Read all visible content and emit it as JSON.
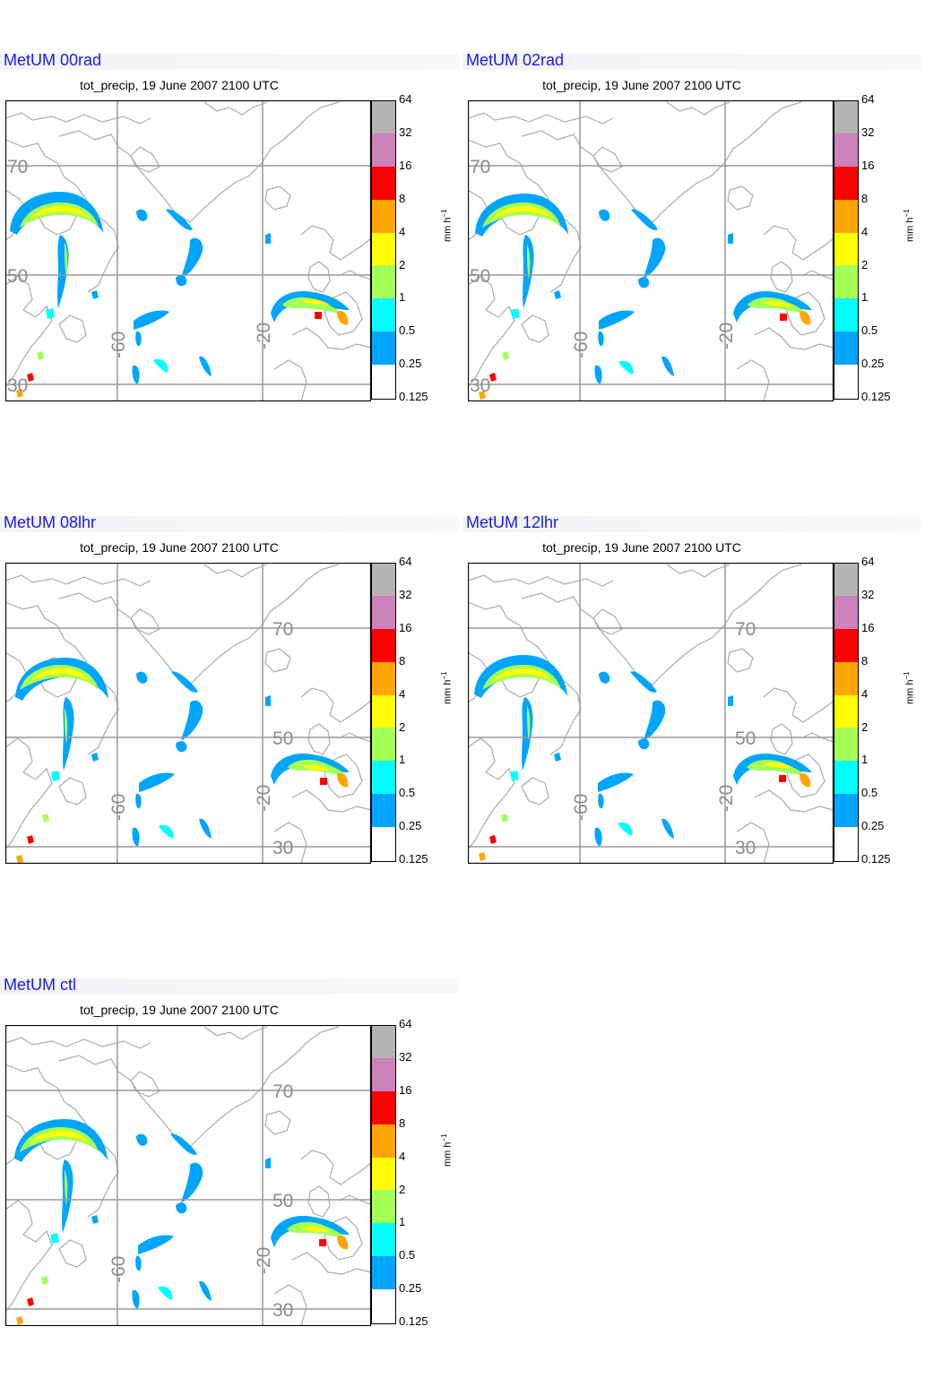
{
  "subtitle": "tot_precip, 19 June 2007 2100 UTC",
  "colorbar": {
    "unit_label": "mm h",
    "unit_exponent": "−1",
    "ticks": [
      "64",
      "32",
      "16",
      "8",
      "4",
      "2",
      "1",
      "0.5",
      "0.25",
      "0.125"
    ],
    "colors": [
      "#b4b4b4",
      "#cd82b9",
      "#ff0000",
      "#ffa500",
      "#ffff00",
      "#a5ff55",
      "#00ffff",
      "#00a5ff",
      "#ffffff"
    ]
  },
  "panels": [
    {
      "title": "MetUM 00rad",
      "labels": {
        "lat_high": "70",
        "lat_mid": "50",
        "lat_low": "30",
        "lon_west": "-60",
        "lon_east": "-20"
      },
      "label_style": "left"
    },
    {
      "title": "MetUM 02rad",
      "labels": {
        "lat_high": "70",
        "lat_mid": "50",
        "lat_low": "30",
        "lon_west": "-60",
        "lon_east": "-20"
      },
      "label_style": "left"
    },
    {
      "title": "MetUM 08lhr",
      "labels": {
        "lat_high": "70",
        "lat_mid": "50",
        "lat_low": "30",
        "lon_west": "-60",
        "lon_east": "-20"
      },
      "label_style": "center"
    },
    {
      "title": "MetUM 12lhr",
      "labels": {
        "lat_high": "70",
        "lat_mid": "50",
        "lat_low": "30",
        "lon_west": "-60",
        "lon_east": "-20"
      },
      "label_style": "center"
    },
    {
      "title": "MetUM ctl",
      "labels": {
        "lat_high": "70",
        "lat_mid": "50",
        "lat_low": "30",
        "lon_west": "-60",
        "lon_east": "-20"
      },
      "label_style": "center"
    }
  ]
}
